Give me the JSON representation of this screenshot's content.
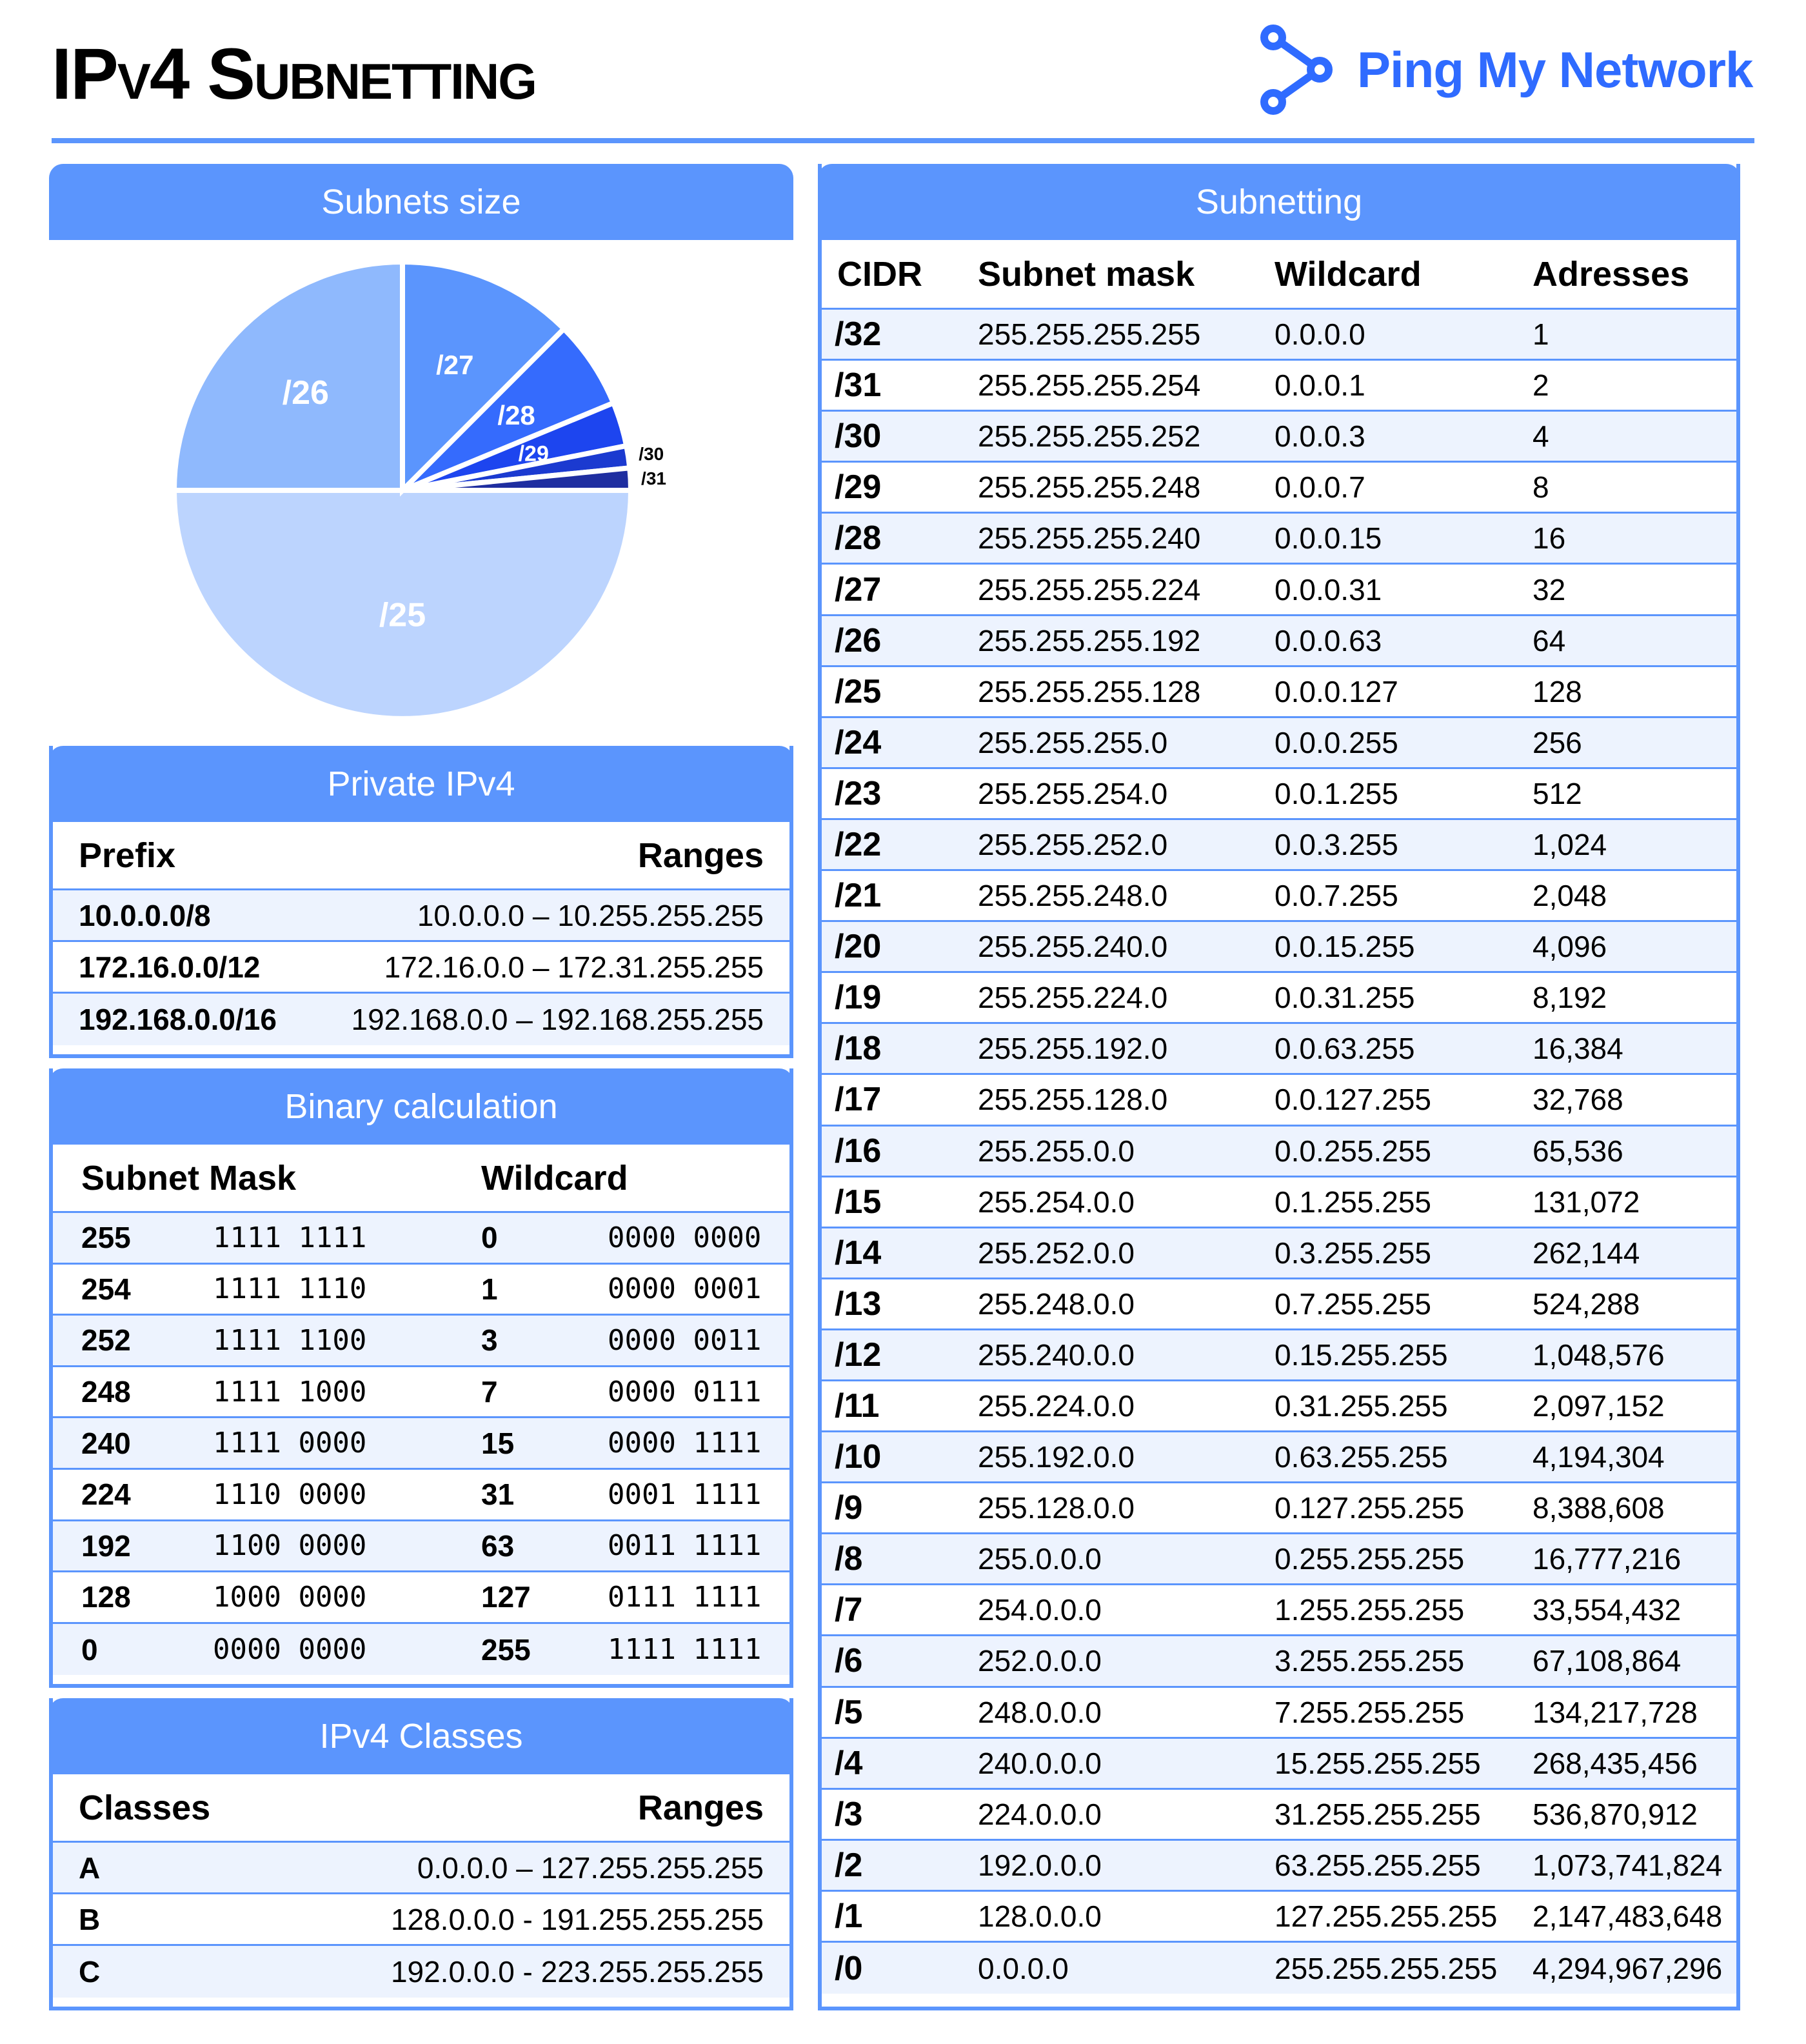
{
  "header": {
    "title": "IPv4 Subnetting",
    "brand": "Ping My Network"
  },
  "subnets_size": {
    "title": "Subnets size"
  },
  "chart_data": {
    "type": "pie",
    "title": "Subnets size",
    "labels": [
      "/25",
      "/26",
      "/27",
      "/28",
      "/29",
      "/30",
      "/31"
    ],
    "values": [
      50,
      25,
      12.5,
      6.25,
      3.125,
      1.5625,
      1.5625
    ],
    "colors": [
      "#bcd4fe",
      "#8fb9fd",
      "#5b95fd",
      "#356bfd",
      "#1d45ef",
      "#1b3ad0",
      "#1f2ea0"
    ]
  },
  "private": {
    "title": "Private IPv4",
    "headers": [
      "Prefix",
      "Ranges"
    ],
    "rows": [
      [
        "10.0.0.0/8",
        "10.0.0.0 – 10.255.255.255"
      ],
      [
        "172.16.0.0/12",
        "172.16.0.0 – 172.31.255.255"
      ],
      [
        "192.168.0.0/16",
        "192.168.0.0 – 192.168.255.255"
      ]
    ]
  },
  "binary": {
    "title": "Binary calculation",
    "headers": [
      "Subnet Mask",
      "Wildcard"
    ],
    "rows": [
      [
        "255",
        "1111 1111",
        "0",
        "0000 0000"
      ],
      [
        "254",
        "1111 1110",
        "1",
        "0000 0001"
      ],
      [
        "252",
        "1111 1100",
        "3",
        "0000 0011"
      ],
      [
        "248",
        "1111 1000",
        "7",
        "0000 0111"
      ],
      [
        "240",
        "1111 0000",
        "15",
        "0000 1111"
      ],
      [
        "224",
        "1110 0000",
        "31",
        "0001 1111"
      ],
      [
        "192",
        "1100 0000",
        "63",
        "0011 1111"
      ],
      [
        "128",
        "1000 0000",
        "127",
        "0111 1111"
      ],
      [
        "0",
        "0000 0000",
        "255",
        "1111 1111"
      ]
    ]
  },
  "classes": {
    "title": "IPv4 Classes",
    "headers": [
      "Classes",
      "Ranges"
    ],
    "rows": [
      [
        "A",
        "0.0.0.0 – 127.255.255.255"
      ],
      [
        "B",
        "128.0.0.0 - 191.255.255.255"
      ],
      [
        "C",
        "192.0.0.0 - 223.255.255.255"
      ]
    ]
  },
  "subnetting": {
    "title": "Subnetting",
    "headers": [
      "CIDR",
      "Subnet mask",
      "Wildcard",
      "Adresses"
    ],
    "rows": [
      [
        "/32",
        "255.255.255.255",
        "0.0.0.0",
        "1"
      ],
      [
        "/31",
        "255.255.255.254",
        "0.0.0.1",
        "2"
      ],
      [
        "/30",
        "255.255.255.252",
        "0.0.0.3",
        "4"
      ],
      [
        "/29",
        "255.255.255.248",
        "0.0.0.7",
        "8"
      ],
      [
        "/28",
        "255.255.255.240",
        "0.0.0.15",
        "16"
      ],
      [
        "/27",
        "255.255.255.224",
        "0.0.0.31",
        "32"
      ],
      [
        "/26",
        "255.255.255.192",
        "0.0.0.63",
        "64"
      ],
      [
        "/25",
        "255.255.255.128",
        "0.0.0.127",
        "128"
      ],
      [
        "/24",
        "255.255.255.0",
        "0.0.0.255",
        "256"
      ],
      [
        "/23",
        "255.255.254.0",
        "0.0.1.255",
        "512"
      ],
      [
        "/22",
        "255.255.252.0",
        "0.0.3.255",
        "1,024"
      ],
      [
        "/21",
        "255.255.248.0",
        "0.0.7.255",
        "2,048"
      ],
      [
        "/20",
        "255.255.240.0",
        "0.0.15.255",
        "4,096"
      ],
      [
        "/19",
        "255.255.224.0",
        "0.0.31.255",
        "8,192"
      ],
      [
        "/18",
        "255.255.192.0",
        "0.0.63.255",
        "16,384"
      ],
      [
        "/17",
        "255.255.128.0",
        "0.0.127.255",
        "32,768"
      ],
      [
        "/16",
        "255.255.0.0",
        "0.0.255.255",
        "65,536"
      ],
      [
        "/15",
        "255.254.0.0",
        "0.1.255.255",
        "131,072"
      ],
      [
        "/14",
        "255.252.0.0",
        "0.3.255.255",
        "262,144"
      ],
      [
        "/13",
        "255.248.0.0",
        "0.7.255.255",
        "524,288"
      ],
      [
        "/12",
        "255.240.0.0",
        "0.15.255.255",
        "1,048,576"
      ],
      [
        "/11",
        "255.224.0.0",
        "0.31.255.255",
        "2,097,152"
      ],
      [
        "/10",
        "255.192.0.0",
        "0.63.255.255",
        "4,194,304"
      ],
      [
        "/9",
        "255.128.0.0",
        "0.127.255.255",
        "8,388,608"
      ],
      [
        "/8",
        "255.0.0.0",
        "0.255.255.255",
        "16,777,216"
      ],
      [
        "/7",
        "254.0.0.0",
        "1.255.255.255",
        "33,554,432"
      ],
      [
        "/6",
        "252.0.0.0",
        "3.255.255.255",
        "67,108,864"
      ],
      [
        "/5",
        "248.0.0.0",
        "7.255.255.255",
        "134,217,728"
      ],
      [
        "/4",
        "240.0.0.0",
        "15.255.255.255",
        "268,435,456"
      ],
      [
        "/3",
        "224.0.0.0",
        "31.255.255.255",
        "536,870,912"
      ],
      [
        "/2",
        "192.0.0.0",
        "63.255.255.255",
        "1,073,741,824"
      ],
      [
        "/1",
        "128.0.0.0",
        "127.255.255.255",
        "2,147,483,648"
      ],
      [
        "/0",
        "0.0.0.0",
        "255.255.255.255",
        "4,294,967,296"
      ]
    ]
  }
}
